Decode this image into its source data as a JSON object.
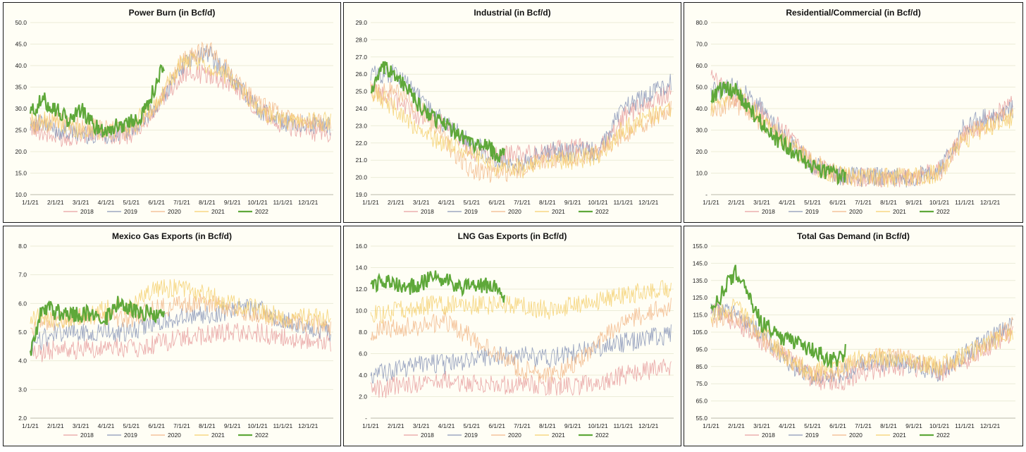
{
  "chart_data": [
    {
      "type": "line",
      "title": "Power Burn (in Bcf/d)",
      "y_ticks": [
        "10.0",
        "15.0",
        "20.0",
        "25.0",
        "30.0",
        "35.0",
        "40.0",
        "45.0",
        "50.0"
      ],
      "ylim": [
        10,
        50
      ],
      "x_ticks": [
        "1/1/21",
        "2/1/21",
        "3/1/21",
        "4/1/21",
        "5/1/21",
        "6/1/21",
        "7/1/21",
        "8/1/21",
        "9/1/21",
        "10/1/21",
        "11/1/21",
        "12/1/21"
      ],
      "legend": [
        "2018",
        "2019",
        "2020",
        "2021",
        "2022"
      ],
      "series": [
        {
          "name": "2018",
          "color": "#e8a0a0",
          "x": [
            0,
            1,
            2,
            3,
            4,
            5,
            6,
            7,
            8,
            9,
            10,
            11.9
          ],
          "values": [
            26,
            23,
            24,
            24,
            24,
            30,
            38,
            38,
            36,
            30,
            26,
            24
          ]
        },
        {
          "name": "2019",
          "color": "#8a96b8",
          "x": [
            0,
            1,
            2,
            3,
            4,
            5,
            6,
            7,
            8,
            9,
            10,
            11.9
          ],
          "values": [
            27,
            25,
            24,
            24,
            25,
            30,
            40,
            43,
            37,
            30,
            27,
            26
          ]
        },
        {
          "name": "2020",
          "color": "#f2b98a",
          "x": [
            0,
            1,
            2,
            3,
            4,
            5,
            6,
            7,
            8,
            9,
            10,
            11.9
          ],
          "values": [
            26,
            27,
            26,
            25,
            25,
            30,
            41,
            44,
            38,
            31,
            28,
            26
          ]
        },
        {
          "name": "2021",
          "color": "#f5d06e",
          "x": [
            0,
            1,
            2,
            3,
            4,
            5,
            6,
            7,
            8,
            9,
            10,
            11.9
          ],
          "values": [
            27,
            27,
            25,
            25,
            26,
            31,
            41,
            40,
            37,
            30,
            27,
            27
          ]
        },
        {
          "name": "2022",
          "color": "#5fa83a",
          "x": [
            0,
            0.5,
            1,
            1.5,
            2,
            2.5,
            3,
            3.5,
            4,
            4.5,
            5,
            5.3
          ],
          "values": [
            29,
            32,
            30,
            27,
            30,
            26,
            25,
            26,
            27,
            29,
            36,
            40
          ]
        }
      ]
    },
    {
      "type": "line",
      "title": "Industrial (in Bcf/d)",
      "y_ticks": [
        "19.0",
        "20.0",
        "21.0",
        "22.0",
        "23.0",
        "24.0",
        "25.0",
        "26.0",
        "27.0",
        "28.0",
        "29.0"
      ],
      "ylim": [
        19,
        29
      ],
      "x_ticks": [
        "1/1/21",
        "2/1/21",
        "3/1/21",
        "4/1/21",
        "5/1/21",
        "6/1/21",
        "7/1/21",
        "8/1/21",
        "9/1/21",
        "10/1/21",
        "11/1/21",
        "12/1/21"
      ],
      "legend": [
        "2018",
        "2019",
        "2020",
        "2021",
        "2022"
      ],
      "series": [
        {
          "name": "2018",
          "color": "#e8a0a0",
          "x": [
            0,
            1,
            2,
            3,
            4,
            5,
            6,
            7,
            8,
            9,
            10,
            11.9
          ],
          "values": [
            25,
            24.5,
            23.5,
            23,
            21.5,
            21.3,
            21.3,
            21.5,
            21.8,
            21.5,
            23.5,
            25
          ]
        },
        {
          "name": "2019",
          "color": "#8a96b8",
          "x": [
            0,
            1,
            2,
            3,
            4,
            5,
            6,
            7,
            8,
            9,
            10,
            11.9
          ],
          "values": [
            26,
            26,
            24.5,
            23,
            22,
            21,
            20.8,
            21.5,
            21.5,
            21.5,
            24,
            25.5
          ]
        },
        {
          "name": "2020",
          "color": "#f2b98a",
          "x": [
            0,
            1,
            2,
            3,
            4,
            5,
            6,
            7,
            8,
            9,
            10,
            11.9
          ],
          "values": [
            25,
            25,
            24,
            22,
            20.3,
            20.2,
            20.5,
            21,
            21.2,
            21.3,
            22.5,
            24
          ]
        },
        {
          "name": "2021",
          "color": "#f5d06e",
          "x": [
            0,
            1,
            2,
            3,
            4,
            5,
            6,
            7,
            8,
            9,
            10,
            11.9
          ],
          "values": [
            25,
            24,
            22.5,
            22,
            21.5,
            20.6,
            20.5,
            21,
            21,
            21.3,
            22.8,
            24
          ]
        },
        {
          "name": "2022",
          "color": "#5fa83a",
          "x": [
            0,
            0.5,
            1,
            1.5,
            2,
            2.5,
            3,
            3.5,
            4,
            4.5,
            5,
            5.3
          ],
          "values": [
            25,
            26.3,
            26,
            25,
            24,
            23.5,
            23,
            22.6,
            22,
            21.8,
            21.4,
            21.2
          ]
        }
      ]
    },
    {
      "type": "line",
      "title": "Residential/Commercial (in Bcf/d)",
      "y_ticks": [
        "-",
        "10.0",
        "20.0",
        "30.0",
        "40.0",
        "50.0",
        "60.0",
        "70.0",
        "80.0"
      ],
      "ylim": [
        0,
        80
      ],
      "x_ticks": [
        "1/1/21",
        "2/1/21",
        "3/1/21",
        "4/1/21",
        "5/1/21",
        "6/1/21",
        "7/1/21",
        "8/1/21",
        "9/1/21",
        "10/1/21",
        "11/1/21",
        "12/1/21"
      ],
      "legend": [
        "2018",
        "2019",
        "2020",
        "2021",
        "2022"
      ],
      "series": [
        {
          "name": "2018",
          "color": "#e8a0a0",
          "x": [
            0,
            1,
            2,
            3,
            4,
            5,
            6,
            7,
            8,
            9,
            10,
            11.9
          ],
          "values": [
            55,
            45,
            38,
            28,
            14,
            9,
            8,
            8,
            8,
            11,
            28,
            42
          ]
        },
        {
          "name": "2019",
          "color": "#8a96b8",
          "x": [
            0,
            1,
            2,
            3,
            4,
            5,
            6,
            7,
            8,
            9,
            10,
            11.9
          ],
          "values": [
            48,
            50,
            40,
            25,
            14,
            9,
            8,
            8,
            8,
            12,
            32,
            40
          ]
        },
        {
          "name": "2020",
          "color": "#f2b98a",
          "x": [
            0,
            1,
            2,
            3,
            4,
            5,
            6,
            7,
            8,
            9,
            10,
            11.9
          ],
          "values": [
            40,
            42,
            33,
            25,
            16,
            9,
            8,
            8,
            8,
            10,
            28,
            38
          ]
        },
        {
          "name": "2021",
          "color": "#f5d06e",
          "x": [
            0,
            1,
            2,
            3,
            4,
            5,
            6,
            7,
            8,
            9,
            10,
            11.9
          ],
          "values": [
            40,
            48,
            35,
            24,
            14,
            9,
            8,
            8,
            8,
            10,
            26,
            36
          ]
        },
        {
          "name": "2022",
          "color": "#5fa83a",
          "x": [
            0,
            0.5,
            1,
            1.5,
            2,
            2.5,
            3,
            3.5,
            4,
            4.5,
            5,
            5.3
          ],
          "values": [
            45,
            50,
            48,
            40,
            33,
            26,
            22,
            18,
            13,
            11,
            9,
            9
          ]
        }
      ]
    },
    {
      "type": "line",
      "title": "Mexico Gas Exports (in Bcf/d)",
      "y_ticks": [
        "2.0",
        "3.0",
        "4.0",
        "5.0",
        "6.0",
        "7.0",
        "8.0"
      ],
      "ylim": [
        2,
        8
      ],
      "x_ticks": [
        "1/1/21",
        "2/1/21",
        "3/1/21",
        "4/1/21",
        "5/1/21",
        "6/1/21",
        "7/1/21",
        "8/1/21",
        "9/1/21",
        "10/1/21",
        "11/1/21",
        "12/1/21"
      ],
      "legend": [
        "2018",
        "2019",
        "2020",
        "2021",
        "2022"
      ],
      "series": [
        {
          "name": "2018",
          "color": "#e8a0a0",
          "x": [
            0,
            1,
            2,
            3,
            4,
            5,
            6,
            7,
            8,
            9,
            10,
            11.9
          ],
          "values": [
            4.2,
            4.4,
            4.4,
            4.5,
            4.4,
            4.6,
            4.8,
            4.9,
            5.0,
            5.0,
            4.8,
            4.6
          ]
        },
        {
          "name": "2019",
          "color": "#8a96b8",
          "x": [
            0,
            1,
            2,
            3,
            4,
            5,
            6,
            7,
            8,
            9,
            10,
            11.9
          ],
          "values": [
            4.5,
            5.0,
            5.0,
            5.0,
            5.0,
            5.3,
            5.5,
            5.6,
            5.8,
            5.8,
            5.4,
            5.0
          ]
        },
        {
          "name": "2020",
          "color": "#f2b98a",
          "x": [
            0,
            1,
            2,
            3,
            4,
            5,
            6,
            7,
            8,
            9,
            10,
            11.9
          ],
          "values": [
            5.2,
            5.4,
            5.5,
            5.5,
            5.5,
            5.8,
            6.0,
            6.0,
            5.8,
            5.6,
            5.4,
            5.2
          ]
        },
        {
          "name": "2021",
          "color": "#f5d06e",
          "x": [
            0,
            1,
            2,
            3,
            4,
            5,
            6,
            7,
            8,
            9,
            10,
            11.9
          ],
          "values": [
            5.5,
            5.5,
            5.5,
            5.8,
            6.0,
            6.5,
            6.5,
            6.3,
            6.0,
            5.8,
            5.5,
            5.5
          ]
        },
        {
          "name": "2022",
          "color": "#5fa83a",
          "x": [
            0,
            0.5,
            1,
            1.5,
            2,
            2.5,
            3,
            3.5,
            4,
            4.5,
            5,
            5.3
          ],
          "values": [
            4.3,
            5.9,
            5.7,
            5.6,
            5.6,
            5.7,
            5.5,
            6.0,
            5.8,
            5.7,
            5.6,
            5.6
          ]
        }
      ]
    },
    {
      "type": "line",
      "title": "LNG Gas Exports (in Bcf/d)",
      "y_ticks": [
        "-",
        "2.0",
        "4.0",
        "6.0",
        "8.0",
        "10.0",
        "12.0",
        "14.0",
        "16.0"
      ],
      "ylim": [
        0,
        16
      ],
      "x_ticks": [
        "1/1/21",
        "2/1/21",
        "3/1/21",
        "4/1/21",
        "5/1/21",
        "6/1/21",
        "7/1/21",
        "8/1/21",
        "9/1/21",
        "10/1/21",
        "11/1/21",
        "12/1/21"
      ],
      "legend": [
        "2018",
        "2019",
        "2020",
        "2021",
        "2022"
      ],
      "series": [
        {
          "name": "2018",
          "color": "#e8a0a0",
          "x": [
            0,
            1,
            2,
            3,
            4,
            5,
            6,
            7,
            8,
            9,
            10,
            11.9
          ],
          "values": [
            2.5,
            3.0,
            3.2,
            3.5,
            3.2,
            3.0,
            3.2,
            3.0,
            3.0,
            3.2,
            4.0,
            4.8
          ]
        },
        {
          "name": "2019",
          "color": "#8a96b8",
          "x": [
            0,
            1,
            2,
            3,
            4,
            5,
            6,
            7,
            8,
            9,
            10,
            11.9
          ],
          "values": [
            4.0,
            4.5,
            5.0,
            5.0,
            5.5,
            5.8,
            5.8,
            5.5,
            6.0,
            6.5,
            7.0,
            7.8
          ]
        },
        {
          "name": "2020",
          "color": "#f2b98a",
          "x": [
            0,
            1,
            2,
            3,
            4,
            5,
            6,
            7,
            8,
            9,
            10,
            11.9
          ],
          "values": [
            8.0,
            8.5,
            8.5,
            9.0,
            7.5,
            6.0,
            4.5,
            4.0,
            5.0,
            7.0,
            9.0,
            10.5
          ]
        },
        {
          "name": "2021",
          "color": "#f5d06e",
          "x": [
            0,
            1,
            2,
            3,
            4,
            5,
            6,
            7,
            8,
            9,
            10,
            11.9
          ],
          "values": [
            9.5,
            10.0,
            10.5,
            10.5,
            10.5,
            10.5,
            10.5,
            10.0,
            10.5,
            11.0,
            11.5,
            12.0
          ]
        },
        {
          "name": "2022",
          "color": "#5fa83a",
          "x": [
            0,
            0.5,
            1,
            1.5,
            2,
            2.5,
            3,
            3.5,
            4,
            4.5,
            5,
            5.3
          ],
          "values": [
            12.0,
            12.8,
            12.5,
            12.2,
            12.6,
            13.0,
            12.8,
            12.2,
            12.5,
            12.3,
            12.5,
            11.0
          ]
        }
      ]
    },
    {
      "type": "line",
      "title": "Total Gas Demand (in Bcf/d)",
      "y_ticks": [
        "55.0",
        "65.0",
        "75.0",
        "85.0",
        "95.0",
        "105.0",
        "115.0",
        "125.0",
        "135.0",
        "145.0",
        "155.0"
      ],
      "ylim": [
        55,
        155
      ],
      "x_ticks": [
        "1/1/21",
        "2/1/21",
        "3/1/21",
        "4/1/21",
        "5/1/21",
        "6/1/21",
        "7/1/21",
        "8/1/21",
        "9/1/21",
        "10/1/21",
        "11/1/21",
        "12/1/21"
      ],
      "legend": [
        "2018",
        "2019",
        "2020",
        "2021",
        "2022"
      ],
      "series": [
        {
          "name": "2018",
          "color": "#e8a0a0",
          "x": [
            0,
            1,
            2,
            3,
            4,
            5,
            6,
            7,
            8,
            9,
            10,
            11.9
          ],
          "values": [
            120,
            110,
            100,
            90,
            78,
            75,
            82,
            85,
            85,
            80,
            88,
            105
          ]
        },
        {
          "name": "2019",
          "color": "#8a96b8",
          "x": [
            0,
            1,
            2,
            3,
            4,
            5,
            6,
            7,
            8,
            9,
            10,
            11.9
          ],
          "values": [
            118,
            115,
            105,
            88,
            78,
            80,
            86,
            88,
            86,
            82,
            92,
            110
          ]
        },
        {
          "name": "2020",
          "color": "#f2b98a",
          "x": [
            0,
            1,
            2,
            3,
            4,
            5,
            6,
            7,
            8,
            9,
            10,
            11.9
          ],
          "values": [
            112,
            115,
            102,
            90,
            80,
            82,
            88,
            92,
            88,
            84,
            90,
            108
          ]
        },
        {
          "name": "2021",
          "color": "#f5d06e",
          "x": [
            0,
            1,
            2,
            3,
            4,
            5,
            6,
            7,
            8,
            9,
            10,
            11.9
          ],
          "values": [
            115,
            120,
            105,
            90,
            82,
            84,
            90,
            90,
            88,
            85,
            92,
            105
          ]
        },
        {
          "name": "2022",
          "color": "#5fa83a",
          "x": [
            0,
            0.5,
            1,
            1.5,
            2,
            2.5,
            3,
            3.5,
            4,
            4.5,
            5,
            5.3
          ],
          "values": [
            115,
            130,
            140,
            125,
            110,
            105,
            100,
            98,
            95,
            90,
            88,
            94
          ]
        }
      ]
    }
  ]
}
